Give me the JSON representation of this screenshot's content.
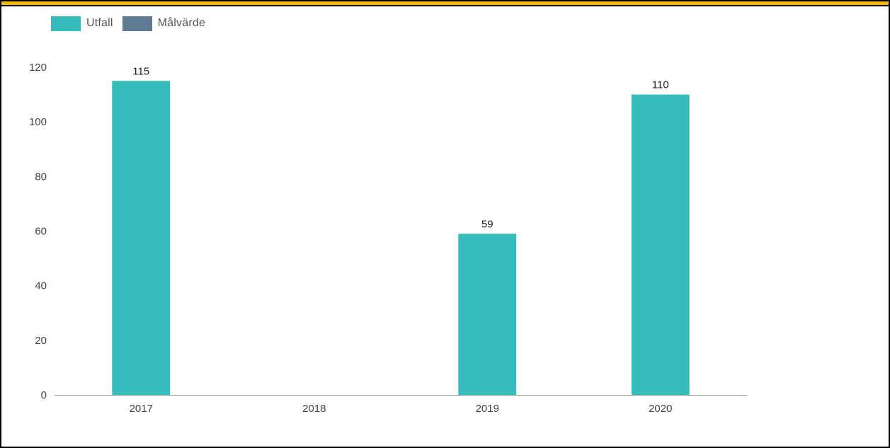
{
  "colors": {
    "top_bar": "#f5b800",
    "utfall": "#37bcbc",
    "malvarde": "#5e7b93",
    "axis": "#9e9e9e"
  },
  "legend": {
    "items": [
      {
        "label": "Utfall",
        "color": "#37bcbc"
      },
      {
        "label": "Målvärde",
        "color": "#5e7b93"
      }
    ]
  },
  "chart_data": {
    "type": "bar",
    "categories": [
      "2017",
      "2018",
      "2019",
      "2020"
    ],
    "series": [
      {
        "name": "Utfall",
        "values": [
          115,
          null,
          59,
          110
        ]
      },
      {
        "name": "Målvärde",
        "values": [
          null,
          null,
          null,
          null
        ]
      }
    ],
    "ylim": [
      0,
      120
    ],
    "yticks": [
      0,
      20,
      40,
      60,
      80,
      100,
      120
    ],
    "data_labels": true,
    "grid": false,
    "legend_position": "top-left"
  }
}
